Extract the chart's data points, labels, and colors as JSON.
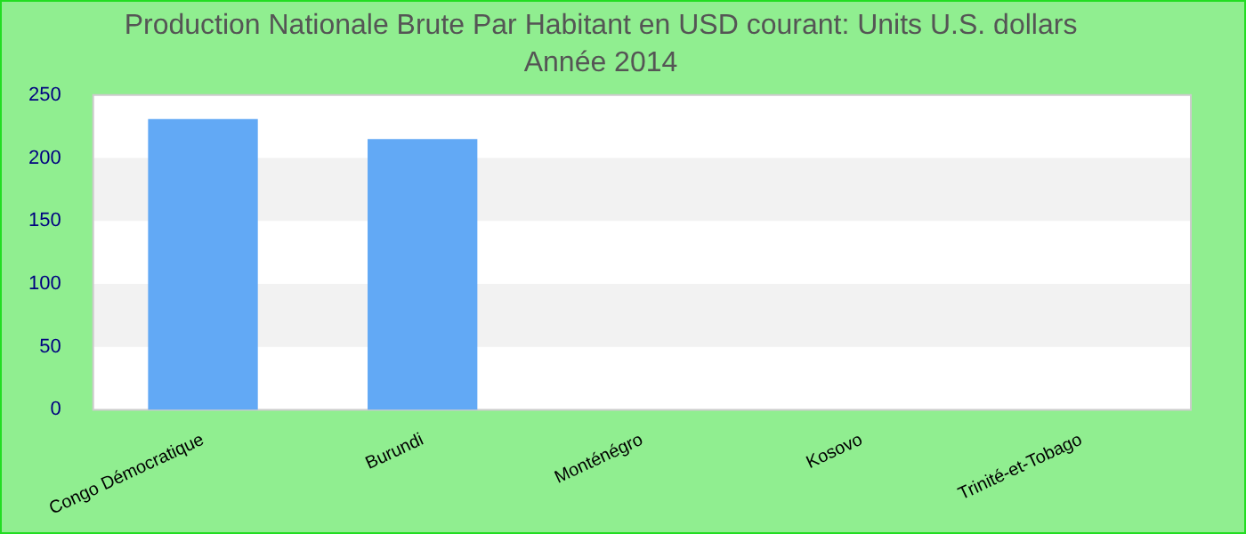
{
  "chart_data": {
    "type": "bar",
    "title": "Production Nationale Brute Par Habitant en USD courant: Units U.S. dollars",
    "subtitle": "Année 2014",
    "categories": [
      "Congo Démocratique",
      "Burundi",
      "Monténégro",
      "Kosovo",
      "Trinité-et-Tobago"
    ],
    "values": [
      231,
      215,
      null,
      null,
      null
    ],
    "color": "#62a9f5",
    "ylim": [
      0,
      250
    ],
    "yticks": [
      0,
      50,
      100,
      150,
      200,
      250
    ],
    "legend": false
  }
}
